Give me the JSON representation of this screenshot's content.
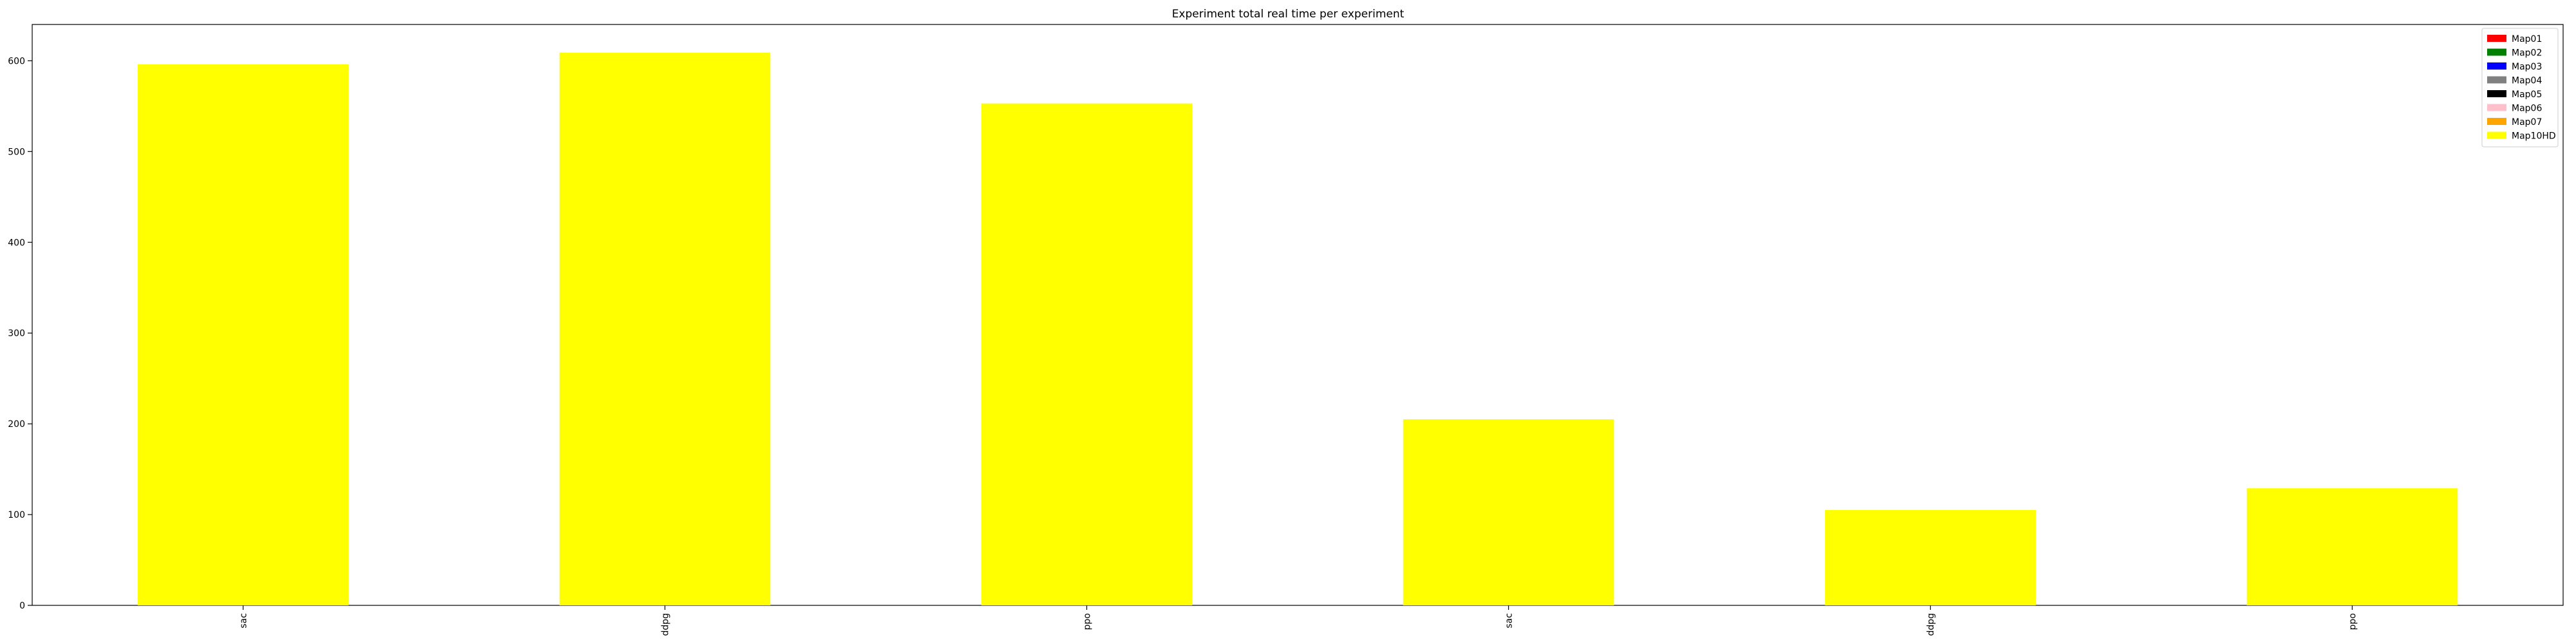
{
  "chart_data": {
    "type": "bar",
    "title": "Experiment total real time per experiment",
    "xlabel": "",
    "ylabel": "",
    "categories": [
      "sac",
      "ddpg",
      "ppo",
      "sac",
      "ddpg",
      "ppo"
    ],
    "series": [
      {
        "name": "Map01",
        "color": "#ff0000",
        "values": [
          0,
          0,
          0,
          0,
          0,
          0
        ]
      },
      {
        "name": "Map02",
        "color": "#008000",
        "values": [
          0,
          0,
          0,
          0,
          0,
          0
        ]
      },
      {
        "name": "Map03",
        "color": "#0000ff",
        "values": [
          0,
          0,
          0,
          0,
          0,
          0
        ]
      },
      {
        "name": "Map04",
        "color": "#808080",
        "values": [
          0,
          0,
          0,
          0,
          0,
          0
        ]
      },
      {
        "name": "Map05",
        "color": "#000000",
        "values": [
          0,
          0,
          0,
          0,
          0,
          0
        ]
      },
      {
        "name": "Map06",
        "color": "#ffc0cb",
        "values": [
          0,
          0,
          0,
          0,
          0,
          0
        ]
      },
      {
        "name": "Map07",
        "color": "#ffa500",
        "values": [
          0,
          0,
          0,
          0,
          0,
          0
        ]
      },
      {
        "name": "Map10HD",
        "color": "#ffff00",
        "values": [
          596,
          609,
          553,
          205,
          105,
          129
        ]
      }
    ],
    "ylim": [
      0,
      640
    ],
    "yticks": [
      0,
      100,
      200,
      300,
      400,
      500,
      600
    ],
    "grid": false,
    "legend": "top-right",
    "stacked": true
  }
}
